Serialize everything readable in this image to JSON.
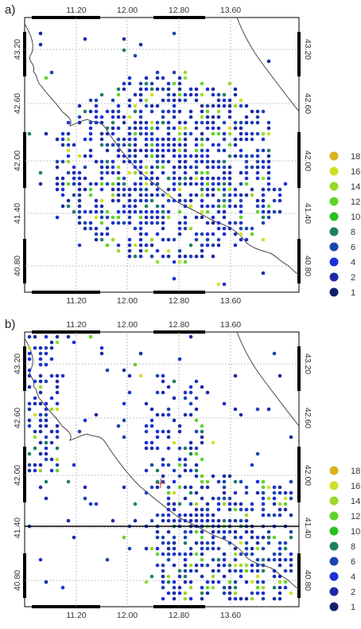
{
  "panels": [
    {
      "label": "a)",
      "lon_ticks": [
        "11.20",
        "12.00",
        "12.80",
        "13.60"
      ],
      "lat_ticks": [
        "43.20",
        "42.60",
        "42.00",
        "41.40",
        "40.80"
      ],
      "legend": [
        {
          "label": "18",
          "color": "#d9b21c"
        },
        {
          "label": "16",
          "color": "#cfe02a"
        },
        {
          "label": "14",
          "color": "#9ad82c"
        },
        {
          "label": "12",
          "color": "#5fd42a"
        },
        {
          "label": "10",
          "color": "#27c21f"
        },
        {
          "label": "8",
          "color": "#1f7f63"
        },
        {
          "label": "6",
          "color": "#1c44b0"
        },
        {
          "label": "4",
          "color": "#1c2fd6"
        },
        {
          "label": "2",
          "color": "#1c2aa8"
        },
        {
          "label": "1",
          "color": "#14206e"
        }
      ]
    },
    {
      "label": "b)",
      "lon_ticks": [
        "11.20",
        "12.00",
        "12.80",
        "13.60"
      ],
      "lat_ticks": [
        "43.20",
        "42.60",
        "42.00",
        "41.40",
        "40.80"
      ],
      "legend": [
        {
          "label": "18",
          "color": "#d9b21c"
        },
        {
          "label": "16",
          "color": "#cfe02a"
        },
        {
          "label": "14",
          "color": "#9ad82c"
        },
        {
          "label": "12",
          "color": "#5fd42a"
        },
        {
          "label": "10",
          "color": "#27c21f"
        },
        {
          "label": "8",
          "color": "#1f7f63"
        },
        {
          "label": "6",
          "color": "#1c44b0"
        },
        {
          "label": "4",
          "color": "#1c2fd6"
        },
        {
          "label": "2",
          "color": "#1c2aa8"
        },
        {
          "label": "1",
          "color": "#14206e"
        }
      ]
    }
  ]
}
